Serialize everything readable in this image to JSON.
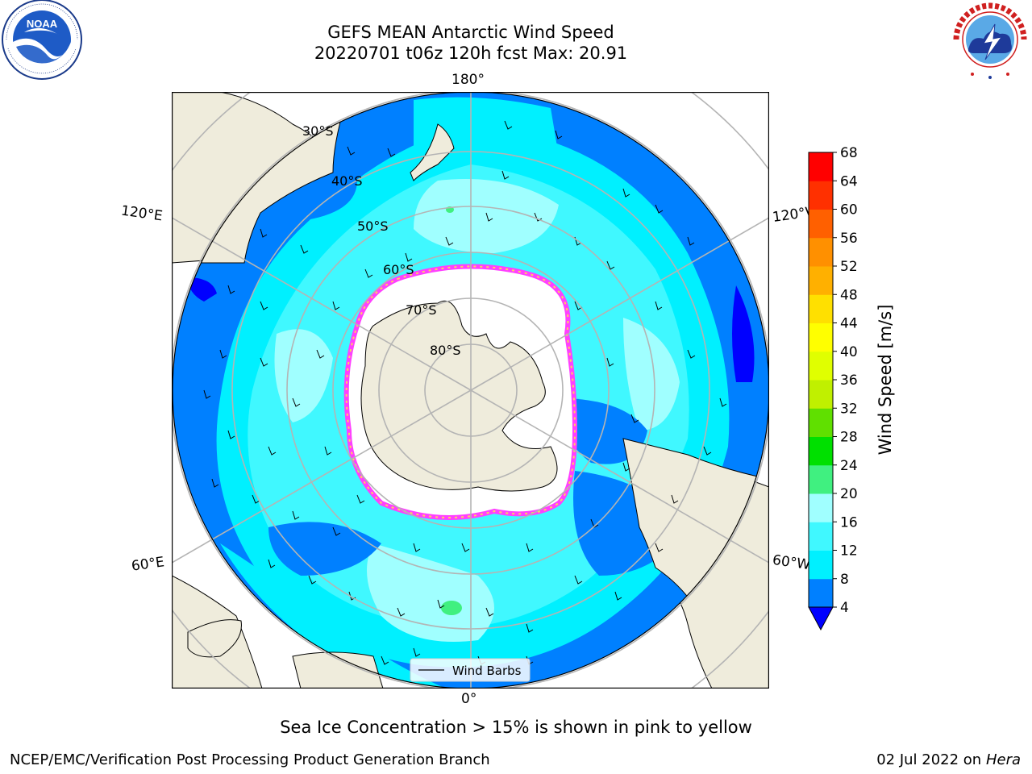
{
  "title": {
    "line1": "GEFS MEAN Antarctic Wind Speed",
    "line2": "20220701 t06z 120h fcst   Max: 20.91"
  },
  "logos": {
    "left": "noara-logo",
    "right": "nws-logo"
  },
  "map": {
    "projection": "south-polar-stereographic",
    "lon_labels": {
      "top": "180°",
      "bottom": "0°",
      "left_upper": "120°E",
      "left_lower": "60°E",
      "right_upper": "120°W",
      "right_lower": "60°W"
    },
    "lat_labels": [
      "30°S",
      "40°S",
      "50°S",
      "60°S",
      "70°S",
      "80°S"
    ],
    "legend_label": "Wind Barbs",
    "colors": {
      "land": "#efecdc",
      "ice": "#ffffff",
      "ice_edge": "#ff40ff",
      "wind_4_8": "#0080ff",
      "wind_8_12": "#00f0ff",
      "wind_12_16": "#40f8ff",
      "wind_16_20": "#a0ffff",
      "wind_20_24": "#40f080"
    }
  },
  "colorbar": {
    "label": "Wind Speed [m/s]",
    "ticks": [
      "4",
      "8",
      "12",
      "16",
      "20",
      "24",
      "28",
      "32",
      "36",
      "40",
      "44",
      "48",
      "52",
      "56",
      "60",
      "64",
      "68"
    ],
    "colors": [
      "#0080ff",
      "#00f0ff",
      "#40f8ff",
      "#a0ffff",
      "#40f080",
      "#00e000",
      "#60e000",
      "#c0f000",
      "#e0ff00",
      "#ffff00",
      "#ffe000",
      "#ffb000",
      "#ff9000",
      "#ff6000",
      "#ff3000",
      "#ff0000"
    ],
    "below_color": "#0000ff"
  },
  "footnote": "Sea Ice Concentration > 15% is shown in pink to yellow",
  "footer": {
    "left": "NCEP/EMC/Verification Post Processing Product Generation Branch",
    "right_date": "02 Jul 2022 on",
    "right_host": "Hera"
  }
}
